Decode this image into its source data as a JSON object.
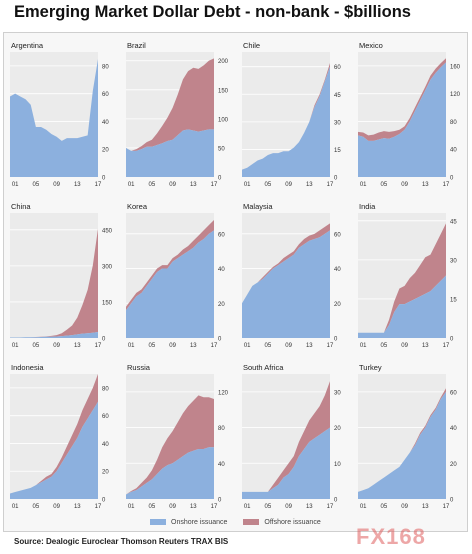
{
  "title": "Emerging Market Dollar Debt - non-bank - $billions",
  "legend": {
    "onshore": "Onshore issuance",
    "offshore": "Offshore issuance"
  },
  "source": "Source: Dealogic Euroclear Thomson Reuters TRAX BIS",
  "watermark": "FX168",
  "colors": {
    "onshore": "#8cb0de",
    "offshore": "#c0848c",
    "plot_bg": "#ebebeb",
    "grid": "#ffffff"
  },
  "chart_data": [
    {
      "type": "area",
      "title": "Argentina",
      "xticks": [
        "01",
        "05",
        "09",
        "13",
        "17"
      ],
      "yticks": [
        0,
        20,
        40,
        60,
        80
      ],
      "ylim": [
        0,
        90
      ],
      "years": [
        2000,
        2001,
        2002,
        2003,
        2004,
        2005,
        2006,
        2007,
        2008,
        2009,
        2010,
        2011,
        2012,
        2013,
        2014,
        2015,
        2016,
        2017
      ],
      "series": [
        {
          "name": "Onshore issuance",
          "values": [
            58,
            60,
            58,
            56,
            52,
            36,
            36,
            34,
            31,
            29,
            26,
            28,
            28,
            28,
            29,
            30,
            62,
            85
          ]
        },
        {
          "name": "Offshore issuance",
          "values": [
            0,
            0,
            0,
            0,
            0,
            0,
            0,
            0,
            0,
            0,
            0,
            0,
            0,
            0,
            0,
            0,
            0,
            0
          ]
        }
      ]
    },
    {
      "type": "area",
      "title": "Brazil",
      "xticks": [
        "01",
        "05",
        "09",
        "13",
        "17"
      ],
      "yticks": [
        0,
        50,
        100,
        150,
        200
      ],
      "ylim": [
        0,
        215
      ],
      "years": [
        2000,
        2001,
        2002,
        2003,
        2004,
        2005,
        2006,
        2007,
        2008,
        2009,
        2010,
        2011,
        2012,
        2013,
        2014,
        2015,
        2016,
        2017
      ],
      "series": [
        {
          "name": "Onshore issuance",
          "values": [
            50,
            45,
            45,
            48,
            52,
            52,
            55,
            58,
            62,
            64,
            72,
            80,
            82,
            80,
            78,
            80,
            82,
            82
          ]
        },
        {
          "name": "Offshore issuance",
          "values": [
            0,
            0,
            3,
            5,
            8,
            12,
            20,
            30,
            40,
            55,
            70,
            88,
            100,
            108,
            108,
            112,
            118,
            122
          ]
        }
      ]
    },
    {
      "type": "area",
      "title": "Chile",
      "xticks": [
        "01",
        "05",
        "09",
        "13",
        "17"
      ],
      "yticks": [
        0,
        15,
        30,
        45,
        60
      ],
      "ylim": [
        0,
        68
      ],
      "years": [
        2000,
        2001,
        2002,
        2003,
        2004,
        2005,
        2006,
        2007,
        2008,
        2009,
        2010,
        2011,
        2012,
        2013,
        2014,
        2015,
        2016,
        2017
      ],
      "series": [
        {
          "name": "Onshore issuance",
          "values": [
            4,
            5,
            7,
            9,
            10,
            12,
            13,
            13,
            14,
            14,
            16,
            19,
            24,
            30,
            38,
            44,
            52,
            60
          ]
        },
        {
          "name": "Offshore issuance",
          "values": [
            0,
            0,
            0,
            0,
            0,
            0,
            0,
            0,
            0,
            0,
            0,
            0,
            0,
            0,
            1,
            1,
            1,
            2
          ]
        }
      ]
    },
    {
      "type": "area",
      "title": "Mexico",
      "xticks": [
        "01",
        "05",
        "09",
        "13",
        "17"
      ],
      "yticks": [
        0,
        40,
        80,
        120,
        160
      ],
      "ylim": [
        0,
        180
      ],
      "years": [
        2000,
        2001,
        2002,
        2003,
        2004,
        2005,
        2006,
        2007,
        2008,
        2009,
        2010,
        2011,
        2012,
        2013,
        2014,
        2015,
        2016,
        2017
      ],
      "series": [
        {
          "name": "Onshore issuance",
          "values": [
            60,
            58,
            52,
            52,
            54,
            56,
            55,
            58,
            62,
            68,
            80,
            95,
            110,
            125,
            140,
            150,
            158,
            165
          ]
        },
        {
          "name": "Offshore issuance",
          "values": [
            5,
            6,
            8,
            9,
            10,
            10,
            10,
            8,
            6,
            5,
            5,
            5,
            5,
            5,
            6,
            6,
            6,
            6
          ]
        }
      ]
    },
    {
      "type": "area",
      "title": "China",
      "xticks": [
        "01",
        "05",
        "09",
        "13",
        "17"
      ],
      "yticks": [
        0,
        150,
        300,
        450
      ],
      "ylim": [
        0,
        520
      ],
      "years": [
        2000,
        2001,
        2002,
        2003,
        2004,
        2005,
        2006,
        2007,
        2008,
        2009,
        2010,
        2011,
        2012,
        2013,
        2014,
        2015,
        2016,
        2017
      ],
      "series": [
        {
          "name": "Onshore issuance",
          "values": [
            2,
            2,
            2,
            3,
            3,
            3,
            4,
            5,
            5,
            6,
            8,
            10,
            12,
            15,
            18,
            20,
            22,
            25
          ]
        },
        {
          "name": "Offshore issuance",
          "values": [
            0,
            0,
            0,
            0,
            0,
            1,
            1,
            2,
            4,
            6,
            12,
            25,
            40,
            70,
            120,
            180,
            280,
            430
          ]
        }
      ]
    },
    {
      "type": "area",
      "title": "Korea",
      "xticks": [
        "01",
        "05",
        "09",
        "13",
        "17"
      ],
      "yticks": [
        0,
        20,
        40,
        60
      ],
      "ylim": [
        0,
        72
      ],
      "years": [
        2000,
        2001,
        2002,
        2003,
        2004,
        2005,
        2006,
        2007,
        2008,
        2009,
        2010,
        2011,
        2012,
        2013,
        2014,
        2015,
        2016,
        2017
      ],
      "series": [
        {
          "name": "Onshore issuance",
          "values": [
            16,
            20,
            24,
            26,
            30,
            34,
            38,
            40,
            40,
            44,
            46,
            48,
            50,
            52,
            55,
            57,
            60,
            62
          ]
        },
        {
          "name": "Offshore issuance",
          "values": [
            2,
            2,
            2,
            2,
            2,
            2,
            2,
            2,
            2,
            2,
            2,
            3,
            3,
            4,
            4,
            5,
            5,
            6
          ]
        }
      ]
    },
    {
      "type": "area",
      "title": "Malaysia",
      "xticks": [
        "01",
        "05",
        "09",
        "13",
        "17"
      ],
      "yticks": [
        0,
        20,
        40,
        60
      ],
      "ylim": [
        0,
        72
      ],
      "years": [
        2000,
        2001,
        2002,
        2003,
        2004,
        2005,
        2006,
        2007,
        2008,
        2009,
        2010,
        2011,
        2012,
        2013,
        2014,
        2015,
        2016,
        2017
      ],
      "series": [
        {
          "name": "Onshore issuance",
          "values": [
            20,
            25,
            30,
            32,
            34,
            37,
            40,
            42,
            44,
            46,
            48,
            52,
            54,
            56,
            57,
            58,
            60,
            62
          ]
        },
        {
          "name": "Offshore issuance",
          "values": [
            0,
            0,
            0,
            0,
            1,
            1,
            1,
            1,
            2,
            2,
            2,
            2,
            3,
            3,
            3,
            4,
            4,
            4
          ]
        }
      ]
    },
    {
      "type": "area",
      "title": "India",
      "xticks": [
        "01",
        "05",
        "09",
        "13",
        "17"
      ],
      "yticks": [
        0,
        15,
        30,
        45
      ],
      "ylim": [
        0,
        48
      ],
      "years": [
        2000,
        2001,
        2002,
        2003,
        2004,
        2005,
        2006,
        2007,
        2008,
        2009,
        2010,
        2011,
        2012,
        2013,
        2014,
        2015,
        2016,
        2017
      ],
      "series": [
        {
          "name": "Onshore issuance",
          "values": [
            2,
            2,
            2,
            2,
            2,
            2,
            5,
            10,
            13,
            13,
            14,
            15,
            16,
            17,
            18,
            20,
            22,
            24
          ]
        },
        {
          "name": "Offshore issuance",
          "values": [
            0,
            0,
            0,
            0,
            0,
            0,
            2,
            4,
            6,
            7,
            9,
            10,
            12,
            14,
            14,
            16,
            18,
            20
          ]
        }
      ]
    },
    {
      "type": "area",
      "title": "Indonesia",
      "xticks": [
        "01",
        "05",
        "09",
        "13",
        "17"
      ],
      "yticks": [
        0,
        20,
        40,
        60,
        80
      ],
      "ylim": [
        0,
        90
      ],
      "years": [
        2000,
        2001,
        2002,
        2003,
        2004,
        2005,
        2006,
        2007,
        2008,
        2009,
        2010,
        2011,
        2012,
        2013,
        2014,
        2015,
        2016,
        2017
      ],
      "series": [
        {
          "name": "Onshore issuance",
          "values": [
            4,
            5,
            6,
            7,
            8,
            10,
            12,
            14,
            16,
            20,
            26,
            32,
            38,
            44,
            52,
            58,
            64,
            70
          ]
        },
        {
          "name": "Offshore issuance",
          "values": [
            0,
            0,
            0,
            0,
            0,
            0,
            1,
            2,
            2,
            3,
            4,
            6,
            8,
            10,
            12,
            14,
            16,
            20
          ]
        }
      ]
    },
    {
      "type": "area",
      "title": "Russia",
      "xticks": [
        "01",
        "05",
        "09",
        "13",
        "17"
      ],
      "yticks": [
        0,
        40,
        80,
        120
      ],
      "ylim": [
        0,
        140
      ],
      "years": [
        2000,
        2001,
        2002,
        2003,
        2004,
        2005,
        2006,
        2007,
        2008,
        2009,
        2010,
        2011,
        2012,
        2013,
        2014,
        2015,
        2016,
        2017
      ],
      "series": [
        {
          "name": "Onshore issuance",
          "values": [
            5,
            8,
            10,
            14,
            18,
            22,
            28,
            34,
            38,
            40,
            44,
            48,
            52,
            54,
            56,
            56,
            58,
            58
          ]
        },
        {
          "name": "Offshore issuance",
          "values": [
            0,
            1,
            2,
            4,
            6,
            10,
            16,
            24,
            30,
            36,
            42,
            48,
            52,
            56,
            60,
            58,
            56,
            54
          ]
        }
      ]
    },
    {
      "type": "area",
      "title": "South Africa",
      "xticks": [
        "01",
        "05",
        "09",
        "13",
        "17"
      ],
      "yticks": [
        0,
        10,
        20,
        30
      ],
      "ylim": [
        0,
        35
      ],
      "years": [
        2000,
        2001,
        2002,
        2003,
        2004,
        2005,
        2006,
        2007,
        2008,
        2009,
        2010,
        2011,
        2012,
        2013,
        2014,
        2015,
        2016,
        2017
      ],
      "series": [
        {
          "name": "Onshore issuance",
          "values": [
            2,
            2,
            2,
            2,
            2,
            2,
            3,
            4,
            6,
            7,
            9,
            12,
            14,
            16,
            17,
            18,
            19,
            20
          ]
        },
        {
          "name": "Offshore issuance",
          "values": [
            0,
            0,
            0,
            0,
            0,
            0,
            1,
            2,
            2,
            3,
            3,
            4,
            5,
            6,
            7,
            8,
            10,
            13
          ]
        }
      ]
    },
    {
      "type": "area",
      "title": "Turkey",
      "xticks": [
        "01",
        "05",
        "09",
        "13",
        "17"
      ],
      "yticks": [
        0,
        20,
        40,
        60
      ],
      "ylim": [
        0,
        70
      ],
      "years": [
        2000,
        2001,
        2002,
        2003,
        2004,
        2005,
        2006,
        2007,
        2008,
        2009,
        2010,
        2011,
        2012,
        2013,
        2014,
        2015,
        2016,
        2017
      ],
      "series": [
        {
          "name": "Onshore issuance",
          "values": [
            4,
            5,
            6,
            8,
            10,
            12,
            14,
            16,
            18,
            22,
            26,
            30,
            36,
            40,
            46,
            50,
            56,
            60
          ]
        },
        {
          "name": "Offshore issuance",
          "values": [
            0,
            0,
            0,
            0,
            0,
            0,
            0,
            0,
            0,
            0,
            0,
            1,
            1,
            1,
            1,
            1,
            1,
            2
          ]
        }
      ]
    }
  ]
}
